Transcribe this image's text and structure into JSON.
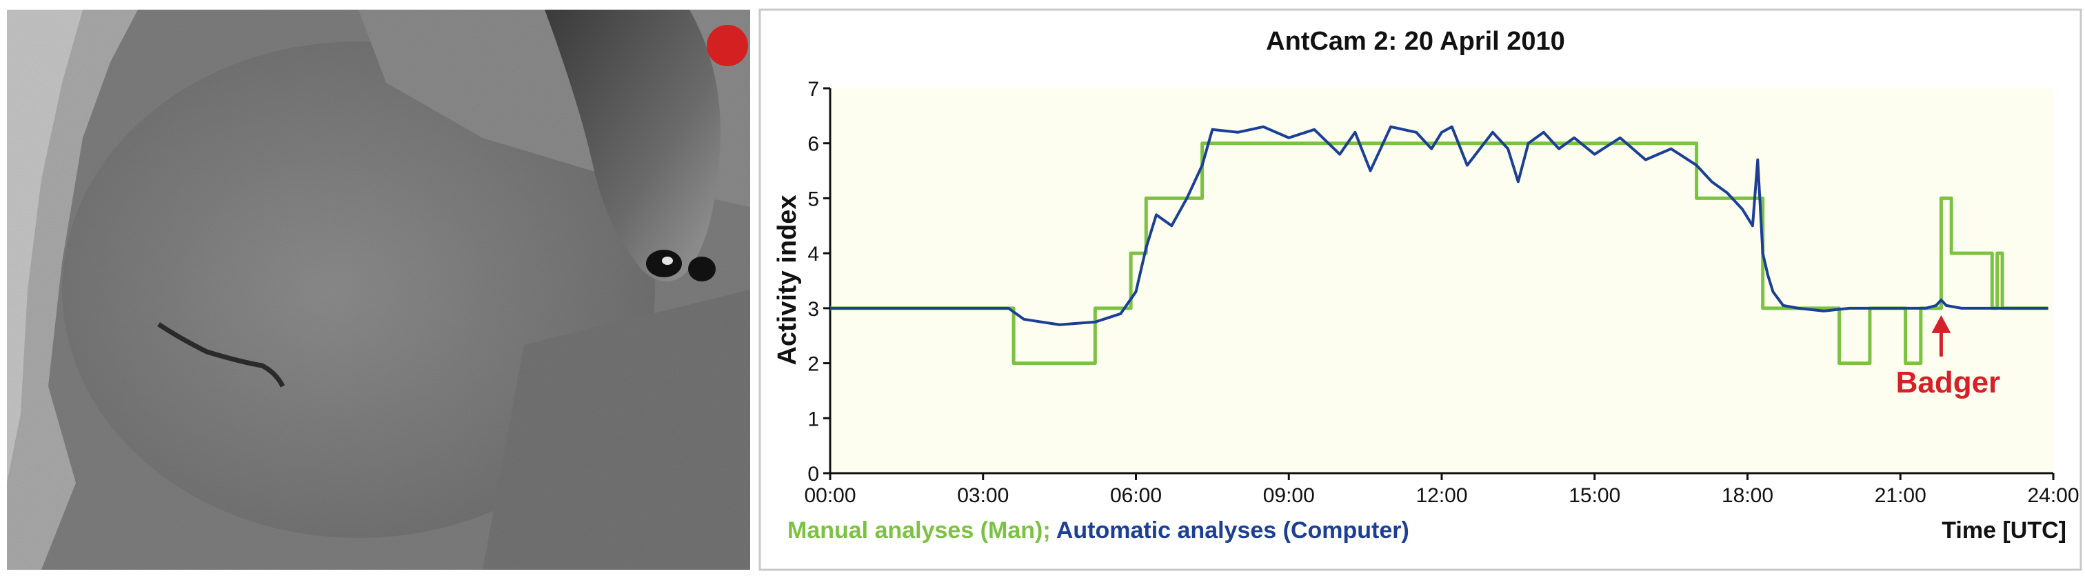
{
  "photo": {
    "description_icon": "camera-trap-image",
    "recording_dot_color": "#d42020"
  },
  "chart_data": {
    "type": "line",
    "title": "AntCam 2: 20 April 2010",
    "xlabel": "Time [UTC]",
    "ylabel": "Activity index",
    "xlim": [
      0,
      24
    ],
    "ylim": [
      0,
      7
    ],
    "x_tick_values": [
      0,
      3,
      6,
      9,
      12,
      15,
      18,
      21,
      24
    ],
    "x_tick_labels": [
      "00:00",
      "03:00",
      "06:00",
      "09:00",
      "12:00",
      "15:00",
      "18:00",
      "21:00",
      "24:00"
    ],
    "y_tick_values": [
      0,
      1,
      2,
      3,
      4,
      5,
      6,
      7
    ],
    "y_tick_labels": [
      "0",
      "1",
      "2",
      "3",
      "4",
      "5",
      "6",
      "7"
    ],
    "grid": false,
    "legend_parts": [
      {
        "text": "Manual analyses (Man);",
        "color": "#7cc242"
      },
      {
        "text": " Automatic analyses (Computer)",
        "color": "#1b3f95"
      }
    ],
    "annotation": {
      "text": "Badger",
      "x": 21.8,
      "y": 3.1,
      "color": "#d42027"
    },
    "series": [
      {
        "name": "Manual analyses (Man)",
        "color": "#7cc242",
        "step": true,
        "x": [
          0,
          3.6,
          5.2,
          5.9,
          6.2,
          7.3,
          17.0,
          18.3,
          18.6,
          19.8,
          20.4,
          21.1,
          21.4,
          21.8,
          22.0,
          22.8,
          22.9,
          23.0,
          23.2,
          23.9
        ],
        "y": [
          3,
          2,
          3,
          4,
          5,
          6,
          5,
          3,
          3,
          2,
          3,
          2,
          3,
          5,
          4,
          3,
          4,
          3,
          3,
          3
        ]
      },
      {
        "name": "Automatic analyses (Computer)",
        "color": "#1b3f95",
        "step": false,
        "x": [
          0,
          3.5,
          3.8,
          4.5,
          5.2,
          5.7,
          6.0,
          6.2,
          6.4,
          6.7,
          7.0,
          7.3,
          7.5,
          8.0,
          8.5,
          9.0,
          9.5,
          10.0,
          10.3,
          10.6,
          11.0,
          11.5,
          11.8,
          12.0,
          12.2,
          12.5,
          13.0,
          13.3,
          13.5,
          13.7,
          14.0,
          14.3,
          14.6,
          15.0,
          15.5,
          16.0,
          16.5,
          17.0,
          17.3,
          17.6,
          17.9,
          18.1,
          18.2,
          18.3,
          18.4,
          18.5,
          18.7,
          19.0,
          19.5,
          20.0,
          21.0,
          21.5,
          21.7,
          21.8,
          21.9,
          22.2,
          23.0,
          23.9
        ],
        "y": [
          3.0,
          3.0,
          2.8,
          2.7,
          2.75,
          2.9,
          3.3,
          4.1,
          4.7,
          4.5,
          5.0,
          5.6,
          6.25,
          6.2,
          6.3,
          6.1,
          6.25,
          5.8,
          6.2,
          5.5,
          6.3,
          6.2,
          5.9,
          6.2,
          6.3,
          5.6,
          6.2,
          5.9,
          5.3,
          6.0,
          6.2,
          5.9,
          6.1,
          5.8,
          6.1,
          5.7,
          5.9,
          5.6,
          5.3,
          5.1,
          4.8,
          4.5,
          5.7,
          4.0,
          3.6,
          3.3,
          3.05,
          3.0,
          2.95,
          3.0,
          3.0,
          3.0,
          3.05,
          3.15,
          3.05,
          3.0,
          3.0,
          3.0
        ]
      }
    ]
  }
}
